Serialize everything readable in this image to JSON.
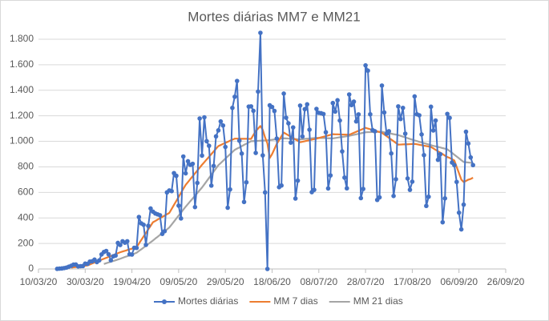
{
  "chart_data": {
    "type": "line",
    "title": "Mortes diárias MM7 e MM21",
    "x": [
      "2020-03-18",
      "2020-03-19",
      "2020-03-20",
      "2020-03-21",
      "2020-03-22",
      "2020-03-23",
      "2020-03-24",
      "2020-03-25",
      "2020-03-26",
      "2020-03-27",
      "2020-03-28",
      "2020-03-29",
      "2020-03-30",
      "2020-03-31",
      "2020-04-01",
      "2020-04-02",
      "2020-04-03",
      "2020-04-04",
      "2020-04-05",
      "2020-04-06",
      "2020-04-07",
      "2020-04-08",
      "2020-04-09",
      "2020-04-10",
      "2020-04-11",
      "2020-04-12",
      "2020-04-13",
      "2020-04-14",
      "2020-04-15",
      "2020-04-16",
      "2020-04-17",
      "2020-04-18",
      "2020-04-19",
      "2020-04-20",
      "2020-04-21",
      "2020-04-22",
      "2020-04-23",
      "2020-04-24",
      "2020-04-25",
      "2020-04-26",
      "2020-04-27",
      "2020-04-28",
      "2020-04-29",
      "2020-04-30",
      "2020-05-01",
      "2020-05-02",
      "2020-05-03",
      "2020-05-04",
      "2020-05-05",
      "2020-05-06",
      "2020-05-07",
      "2020-05-08",
      "2020-05-09",
      "2020-05-10",
      "2020-05-11",
      "2020-05-12",
      "2020-05-13",
      "2020-05-14",
      "2020-05-15",
      "2020-05-16",
      "2020-05-17",
      "2020-05-18",
      "2020-05-19",
      "2020-05-20",
      "2020-05-21",
      "2020-05-22",
      "2020-05-23",
      "2020-05-24",
      "2020-05-25",
      "2020-05-26",
      "2020-05-27",
      "2020-05-28",
      "2020-05-29",
      "2020-05-30",
      "2020-05-31",
      "2020-06-01",
      "2020-06-02",
      "2020-06-03",
      "2020-06-04",
      "2020-06-05",
      "2020-06-06",
      "2020-06-07",
      "2020-06-08",
      "2020-06-09",
      "2020-06-10",
      "2020-06-11",
      "2020-06-12",
      "2020-06-13",
      "2020-06-14",
      "2020-06-15",
      "2020-06-16",
      "2020-06-17",
      "2020-06-18",
      "2020-06-19",
      "2020-06-20",
      "2020-06-21",
      "2020-06-22",
      "2020-06-23",
      "2020-06-24",
      "2020-06-25",
      "2020-06-26",
      "2020-06-27",
      "2020-06-28",
      "2020-06-29",
      "2020-06-30",
      "2020-07-01",
      "2020-07-02",
      "2020-07-03",
      "2020-07-04",
      "2020-07-05",
      "2020-07-06",
      "2020-07-07",
      "2020-07-08",
      "2020-07-09",
      "2020-07-10",
      "2020-07-11",
      "2020-07-12",
      "2020-07-13",
      "2020-07-14",
      "2020-07-15",
      "2020-07-16",
      "2020-07-17",
      "2020-07-18",
      "2020-07-19",
      "2020-07-20",
      "2020-07-21",
      "2020-07-22",
      "2020-07-23",
      "2020-07-24",
      "2020-07-25",
      "2020-07-26",
      "2020-07-27",
      "2020-07-28",
      "2020-07-29",
      "2020-07-30",
      "2020-07-31",
      "2020-08-01",
      "2020-08-02",
      "2020-08-03",
      "2020-08-04",
      "2020-08-05",
      "2020-08-06",
      "2020-08-07",
      "2020-08-08",
      "2020-08-09",
      "2020-08-10",
      "2020-08-11",
      "2020-08-12",
      "2020-08-13",
      "2020-08-14",
      "2020-08-15",
      "2020-08-16",
      "2020-08-17",
      "2020-08-18",
      "2020-08-19",
      "2020-08-20",
      "2020-08-21",
      "2020-08-22",
      "2020-08-23",
      "2020-08-24",
      "2020-08-25",
      "2020-08-26",
      "2020-08-27",
      "2020-08-28",
      "2020-08-29",
      "2020-08-30",
      "2020-08-31",
      "2020-09-01",
      "2020-09-02",
      "2020-09-03",
      "2020-09-04",
      "2020-09-05",
      "2020-09-06",
      "2020-09-07",
      "2020-09-08",
      "2020-09-09",
      "2020-09-10",
      "2020-09-11",
      "2020-09-12"
    ],
    "series": [
      {
        "name": "Mortes diárias",
        "color": "#4472c4",
        "marker": true,
        "values": [
          1,
          3,
          4,
          7,
          11,
          18,
          25,
          34,
          35,
          20,
          22,
          23,
          42,
          40,
          58,
          60,
          73,
          54,
          67,
          114,
          133,
          141,
          115,
          68,
          99,
          105,
          204,
          188,
          217,
          206,
          217,
          115,
          113,
          166,
          165,
          407,
          357,
          346,
          189,
          338,
          474,
          449,
          435,
          428,
          421,
          275,
          296,
          600,
          615,
          610,
          751,
          730,
          496,
          396,
          881,
          749,
          844,
          816,
          824,
          485,
          674,
          1179,
          888,
          1188,
          1001,
          965,
          653,
          807,
          1039,
          1086,
          1156,
          1124,
          956,
          480,
          623,
          1262,
          1349,
          1473,
          1005,
          904,
          525,
          679,
          1272,
          1274,
          1239,
          909,
          1390,
          1850,
          890,
          600,
          0,
          1282,
          1269,
          1238,
          1022,
          641,
          654,
          1374,
          1185,
          1141,
          990,
          1109,
          552,
          692,
          1280,
          1038,
          1252,
          1290,
          1091,
          602,
          620,
          1254,
          1223,
          1220,
          1214,
          1071,
          631,
          733,
          1300,
          1233,
          1322,
          1163,
          921,
          716,
          632,
          1367,
          1284,
          1311,
          1156,
          1211,
          555,
          627,
          1595,
          1554,
          1212,
          1088,
          1079,
          541,
          561,
          1437,
          1226,
          1060,
          1079,
          905,
          572,
          703,
          1274,
          1175,
          1262,
          1060,
          709,
          620,
          684,
          1352,
          1212,
          1204,
          1054,
          892,
          494,
          566,
          1271,
          1085,
          1163,
          855,
          899,
          366,
          553,
          1215,
          1184,
          834,
          814,
          682,
          441,
          310,
          504,
          1075,
          983,
          874,
          814
        ]
      },
      {
        "name": "MM 7 dias",
        "color": "#ed7d31",
        "marker": false,
        "values": [
          null,
          null,
          null,
          null,
          null,
          null,
          10,
          13,
          15,
          18,
          20,
          23,
          25,
          28,
          35,
          43,
          50,
          58,
          65,
          73,
          80,
          87,
          94,
          102,
          109,
          116,
          124,
          131,
          137,
          142,
          148,
          154,
          159,
          165,
          171,
          199,
          227,
          255,
          283,
          310,
          338,
          366,
          376,
          387,
          397,
          408,
          418,
          429,
          439,
          470,
          502,
          533,
          565,
          596,
          628,
          659,
          681,
          704,
          726,
          749,
          771,
          794,
          816,
          837,
          858,
          879,
          900,
          921,
          942,
          963,
          971,
          980,
          988,
          996,
          1005,
          1013,
          1021,
          1021,
          1021,
          1020,
          1020,
          1020,
          1019,
          1019,
          1050,
          1080,
          1100,
          1120,
          1090,
          1030,
          983,
          870,
          900,
          940,
          980,
          1010,
          1040,
          1069,
          1058,
          1047,
          1036,
          1025,
          1015,
          1004,
          993,
          997,
          1001,
          1005,
          1009,
          1013,
          1017,
          1021,
          1026,
          1031,
          1036,
          1041,
          1046,
          1051,
          1056,
          1055,
          1055,
          1054,
          1053,
          1053,
          1052,
          1051,
          1059,
          1067,
          1075,
          1083,
          1090,
          1098,
          1106,
          1100,
          1095,
          1089,
          1084,
          1078,
          1073,
          1067,
          1054,
          1041,
          1027,
          1014,
          1001,
          987,
          974,
          975,
          976,
          977,
          977,
          978,
          979,
          980,
          977,
          973,
          970,
          966,
          963,
          959,
          956,
          945,
          933,
          922,
          911,
          900,
          888,
          877,
          870,
          860,
          850,
          800,
          750,
          700,
          681,
          690,
          700,
          705,
          715
        ]
      },
      {
        "name": "MM 21 dias",
        "color": "#a5a5a5",
        "marker": false,
        "values": [
          null,
          null,
          null,
          null,
          null,
          null,
          null,
          null,
          null,
          null,
          null,
          null,
          null,
          null,
          null,
          null,
          null,
          null,
          null,
          null,
          39,
          45,
          51,
          57,
          62,
          68,
          74,
          80,
          87,
          94,
          100,
          107,
          114,
          120,
          127,
          141,
          154,
          168,
          182,
          196,
          209,
          223,
          238,
          252,
          267,
          281,
          296,
          310,
          325,
          348,
          371,
          395,
          418,
          441,
          465,
          488,
          509,
          531,
          552,
          574,
          595,
          617,
          638,
          663,
          688,
          713,
          738,
          763,
          788,
          813,
          830,
          847,
          864,
          882,
          899,
          916,
          933,
          943,
          952,
          962,
          972,
          982,
          991,
          1001,
          1002,
          1003,
          1004,
          1005,
          1006,
          1007,
          1008,
          1010,
          1012,
          1015,
          1017,
          1019,
          1022,
          1024,
          1023,
          1022,
          1020,
          1019,
          1018,
          1016,
          1015,
          1017,
          1019,
          1021,
          1022,
          1024,
          1026,
          1028,
          1027,
          1026,
          1026,
          1025,
          1024,
          1024,
          1023,
          1026,
          1029,
          1032,
          1034,
          1037,
          1040,
          1043,
          1047,
          1051,
          1055,
          1059,
          1063,
          1067,
          1071,
          1072,
          1072,
          1073,
          1073,
          1074,
          1074,
          1075,
          1071,
          1067,
          1064,
          1060,
          1056,
          1053,
          1049,
          1043,
          1037,
          1031,
          1025,
          1019,
          1013,
          1007,
          1002,
          996,
          991,
          986,
          981,
          975,
          970,
          965,
          961,
          956,
          952,
          947,
          943,
          938,
          924,
          910,
          895,
          881,
          867,
          852,
          838,
          836,
          834,
          832,
          830
        ]
      }
    ],
    "xlim": [
      "2020-03-10",
      "2020-09-26"
    ],
    "xticks": [
      {
        "value": "2020-03-10",
        "label": "10/03/20"
      },
      {
        "value": "2020-03-30",
        "label": "30/03/20"
      },
      {
        "value": "2020-04-19",
        "label": "19/04/20"
      },
      {
        "value": "2020-05-09",
        "label": "09/05/20"
      },
      {
        "value": "2020-05-29",
        "label": "29/05/20"
      },
      {
        "value": "2020-06-18",
        "label": "18/06/20"
      },
      {
        "value": "2020-07-08",
        "label": "08/07/20"
      },
      {
        "value": "2020-07-28",
        "label": "28/07/20"
      },
      {
        "value": "2020-08-17",
        "label": "17/08/20"
      },
      {
        "value": "2020-09-06",
        "label": "06/09/20"
      },
      {
        "value": "2020-09-26",
        "label": "26/09/20"
      }
    ],
    "ylim": [
      0,
      1800
    ],
    "yticks": [
      0,
      200,
      400,
      600,
      800,
      {
        "value": 1000,
        "label": "1.000"
      },
      {
        "value": 1200,
        "label": "1.200"
      },
      {
        "value": 1400,
        "label": "1.400"
      },
      {
        "value": 1600,
        "label": "1.600"
      },
      {
        "value": 1800,
        "label": "1.800"
      }
    ],
    "grid": true,
    "legend": "bottom"
  }
}
